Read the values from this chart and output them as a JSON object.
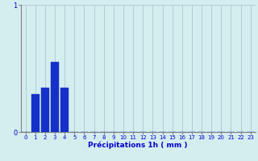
{
  "xlabel": "Précipitations 1h ( mm )",
  "background_color": "#d4eef0",
  "bar_color": "#1530c8",
  "grid_color": "#a8c8cc",
  "axis_color": "#808080",
  "text_color": "#0000cc",
  "ylim": [
    0,
    1.0
  ],
  "xlim": [
    -0.5,
    23.5
  ],
  "yticks": [
    0,
    1
  ],
  "xticks": [
    0,
    1,
    2,
    3,
    4,
    5,
    6,
    7,
    8,
    9,
    10,
    11,
    12,
    13,
    14,
    15,
    16,
    17,
    18,
    19,
    20,
    21,
    22,
    23
  ],
  "bar_values": [
    0,
    0.3,
    0.35,
    0.55,
    0.35,
    0,
    0,
    0,
    0,
    0,
    0,
    0,
    0,
    0,
    0,
    0,
    0,
    0,
    0,
    0,
    0,
    0,
    0,
    0
  ],
  "bar_width": 0.8
}
